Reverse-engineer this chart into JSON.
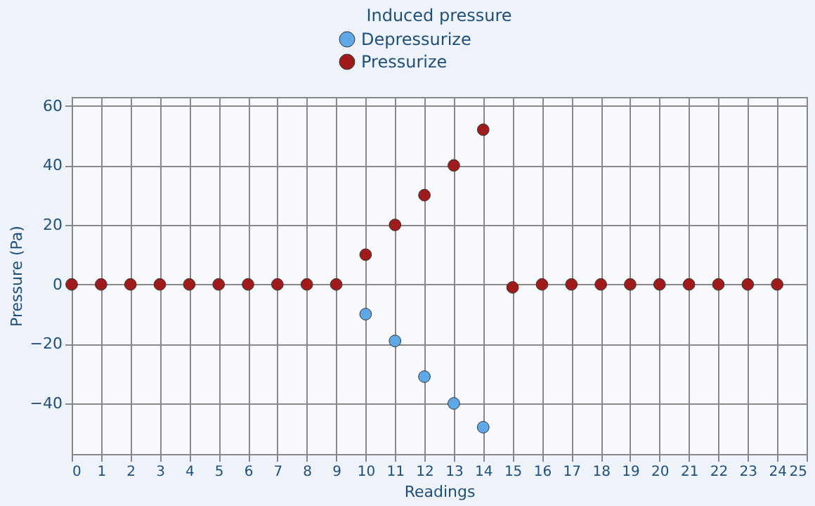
{
  "chart_data": {
    "type": "scatter",
    "title": "Induced pressure",
    "xlabel": "Readings",
    "ylabel": "Pressure (Pa)",
    "series": [
      {
        "name": "Depressurize",
        "color": "#5fa8e8",
        "x": [
          10,
          11,
          12,
          13,
          14
        ],
        "values": [
          -10,
          -19,
          -31,
          -40,
          -48
        ]
      },
      {
        "name": "Pressurize",
        "color": "#a01c1c",
        "x": [
          0,
          1,
          2,
          3,
          4,
          5,
          6,
          7,
          8,
          9,
          10,
          11,
          12,
          13,
          14,
          15,
          16,
          17,
          18,
          19,
          20,
          21,
          22,
          23,
          24
        ],
        "values": [
          0,
          0,
          0,
          0,
          0,
          0,
          0,
          0,
          0,
          0,
          10,
          20,
          30,
          40,
          52,
          -1,
          0,
          0,
          0,
          0,
          0,
          0,
          0,
          0,
          0
        ]
      }
    ],
    "xlim": [
      0,
      25
    ],
    "xticks": [
      0,
      1,
      2,
      3,
      4,
      5,
      6,
      7,
      8,
      9,
      10,
      11,
      12,
      13,
      14,
      15,
      16,
      17,
      18,
      19,
      20,
      21,
      22,
      23,
      24,
      25
    ],
    "ylim": [
      -57,
      63
    ],
    "yticks": [
      -40,
      -20,
      0,
      20,
      40,
      60
    ],
    "grid": true,
    "legend": "top",
    "marker": "circle"
  }
}
